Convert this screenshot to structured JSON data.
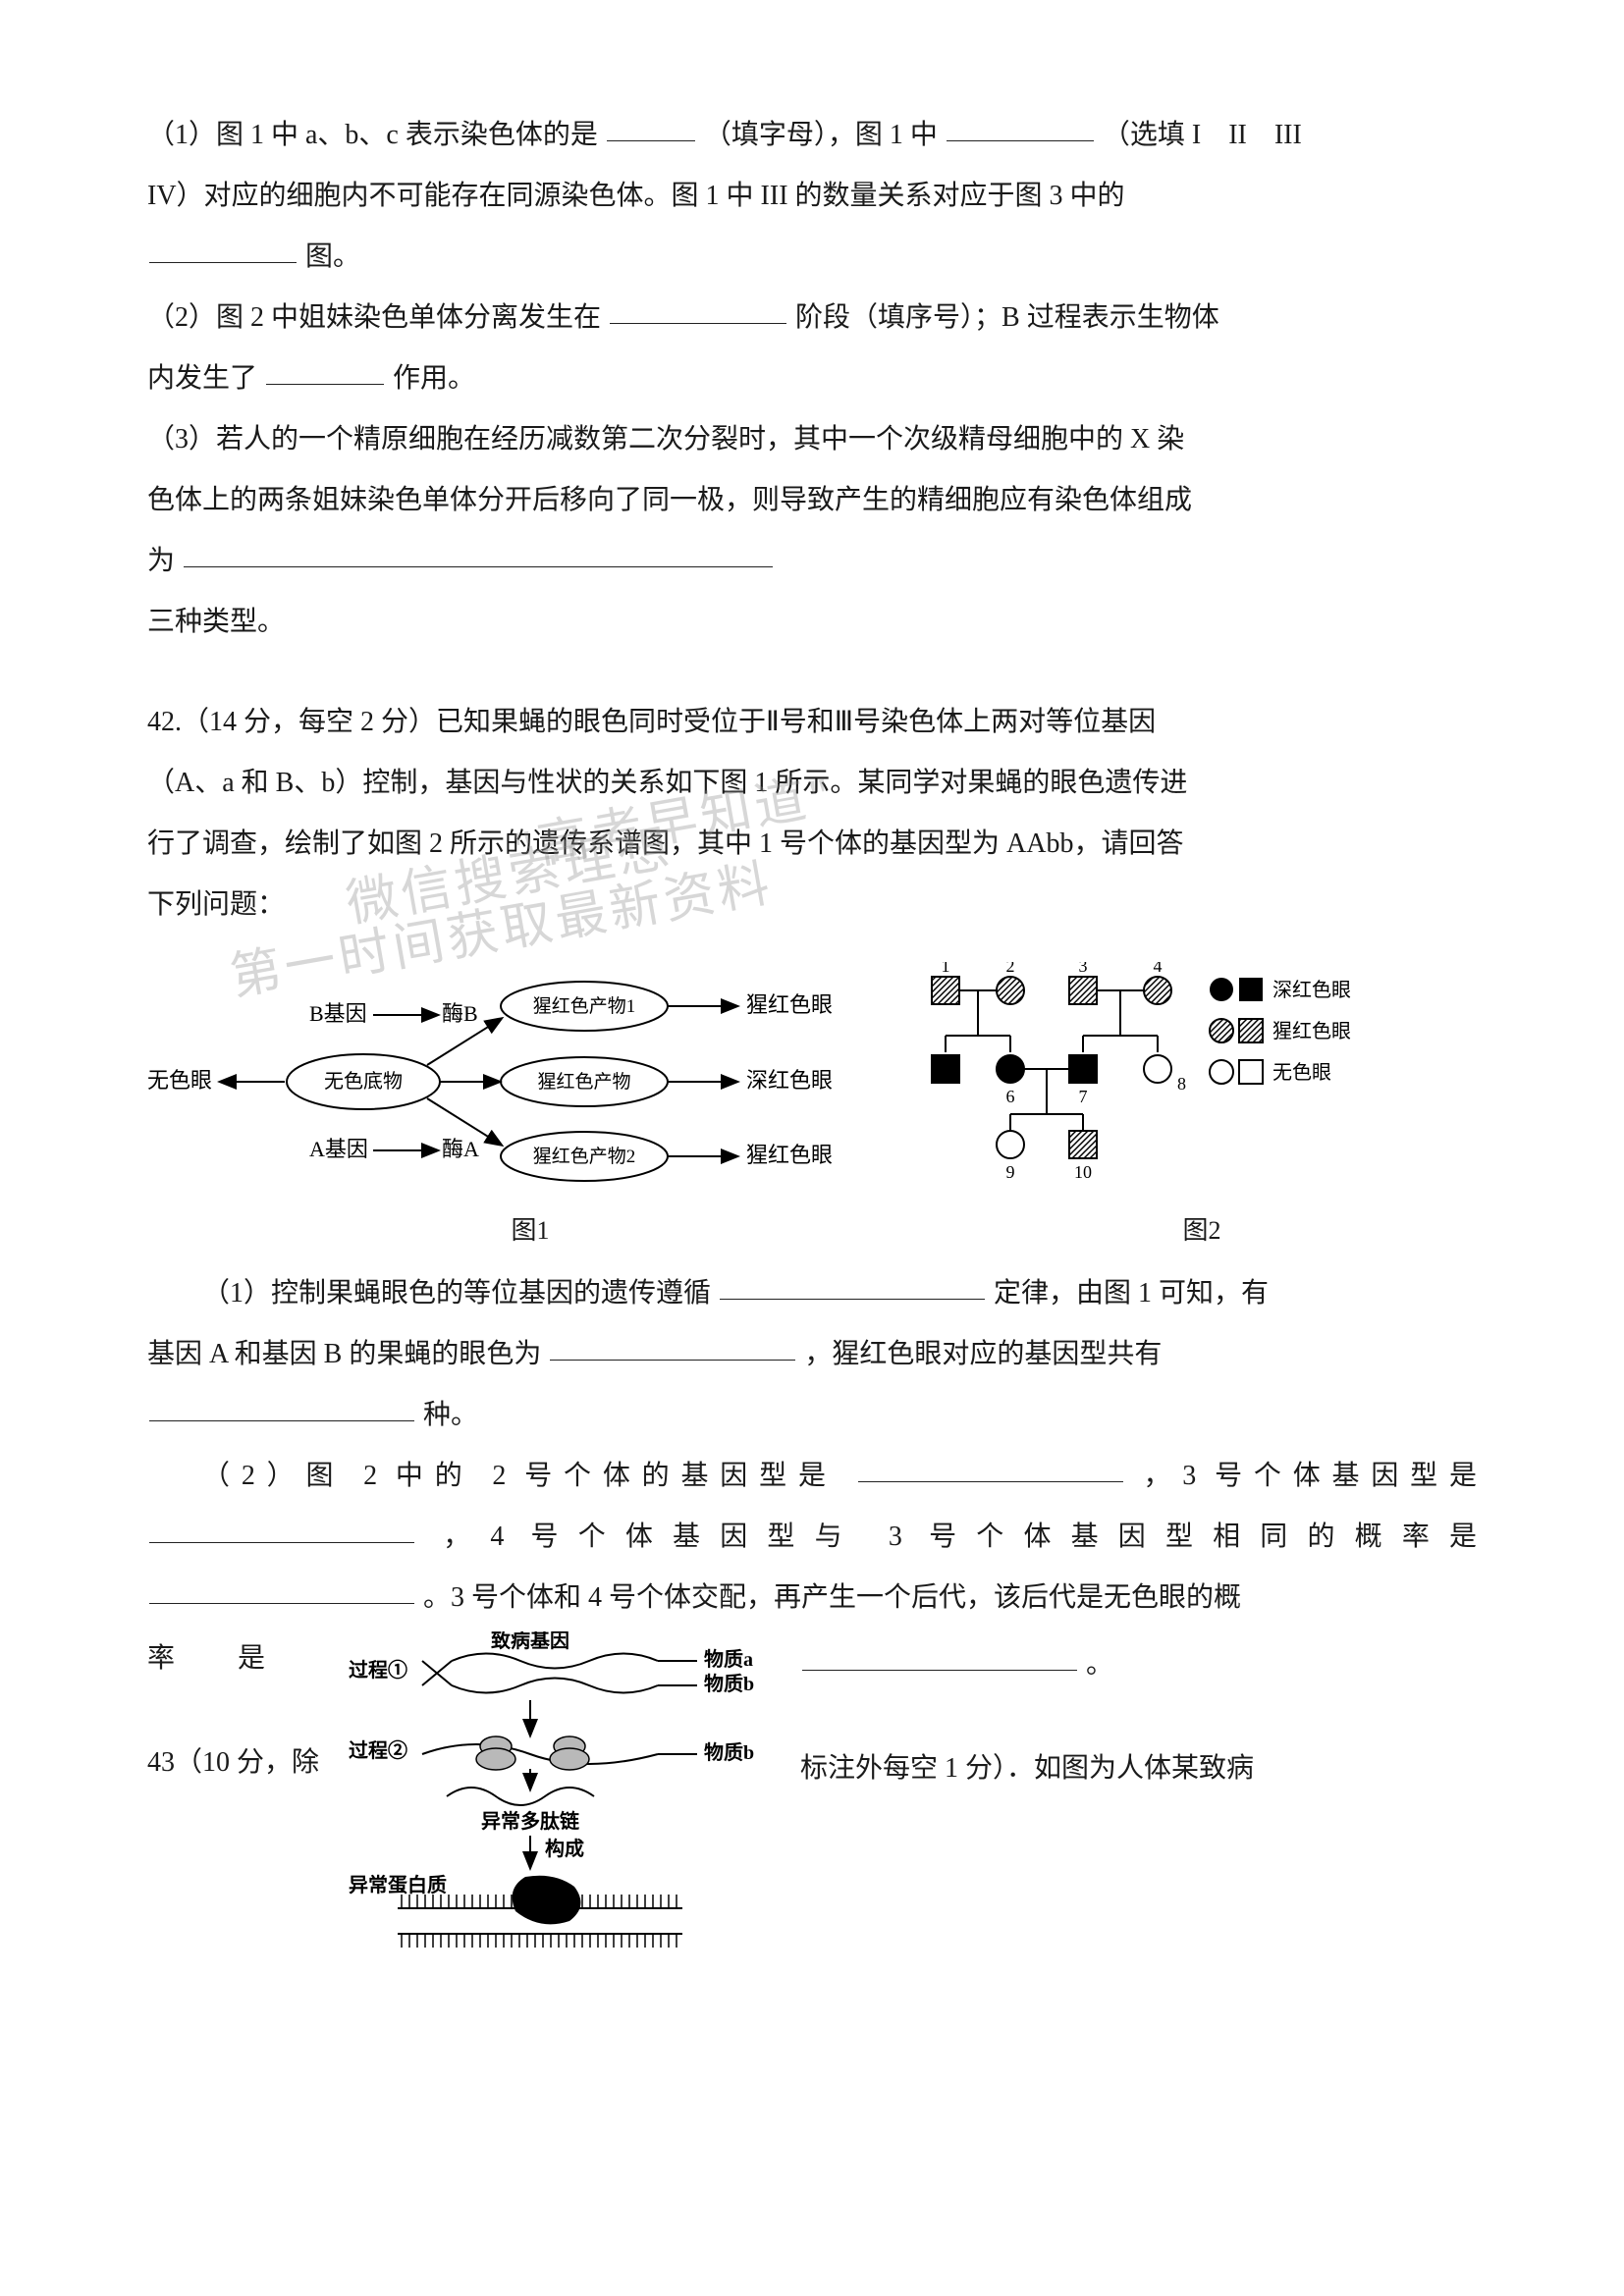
{
  "q41": {
    "p1_a": "（1）图 1 中 a、b、c 表示染色体的是",
    "p1_b": "（填字母），图 1 中",
    "p1_c": "（选填 I　II　III",
    "p1_d": "IV）对应的细胞内不可能存在同源染色体。图 1 中 III 的数量关系对应于图 3 中的",
    "p1_e": "图。",
    "p2_a": "（2）图 2 中姐妹染色单体分离发生在",
    "p2_b": "阶段（填序号）；B 过程表示生物体",
    "p2_c": "内发生了",
    "p2_d": "作用。",
    "p3_a": "（3）若人的一个精原细胞在经历减数第二次分裂时，其中一个次级精母细胞中的 X 染",
    "p3_b": "色体上的两条姐妹染色单体分开后移向了同一极，则导致产生的精细胞应有染色体组成",
    "p3_c": "为",
    "p3_d": "三种类型。"
  },
  "q42": {
    "header": "42.（14 分，每空 2 分）已知果蝇的眼色同时受位于Ⅱ号和Ⅲ号染色体上两对等位基因",
    "line2": "（A、a 和 B、b）控制，基因与性状的关系如下图 1 所示。某同学对果蝇的眼色遗传进",
    "line3": "行了调查，绘制了如图 2 所示的遗传系谱图，其中 1 号个体的基因型为 AAbb，请回答",
    "line4": "下列问题：",
    "fig1": {
      "label": "图1",
      "text": {
        "b_gene": "B基因",
        "enzyme_b": "酶B",
        "no_color_eye": "无色眼",
        "no_color_sub": "无色底物",
        "a_gene": "A基因",
        "enzyme_a": "酶A",
        "prod1": "猩红色产物1",
        "prod": "猩红色产物",
        "prod2": "猩红色产物2",
        "red_eye1": "猩红色眼",
        "dark_red": "深红色眼",
        "red_eye2": "猩红色眼"
      },
      "colors": {
        "stroke": "#000000",
        "fill": "#ffffff"
      }
    },
    "fig2": {
      "label": "图2",
      "legend": {
        "dark_red": "深红色眼",
        "scarlet": "猩红色眼",
        "colorless": "无色眼"
      },
      "nodes": [
        {
          "id": 1,
          "row": 1,
          "col": 0,
          "sex": "m",
          "pheno": "scarlet"
        },
        {
          "id": 2,
          "row": 1,
          "col": 1,
          "sex": "f",
          "pheno": "scarlet"
        },
        {
          "id": 3,
          "row": 1,
          "col": 2,
          "sex": "m",
          "pheno": "scarlet"
        },
        {
          "id": 4,
          "row": 1,
          "col": 3,
          "sex": "f",
          "pheno": "scarlet"
        },
        {
          "id": 5,
          "row": 2,
          "col": 0,
          "sex": "m",
          "pheno": "dark"
        },
        {
          "id": 6,
          "row": 2,
          "col": 1,
          "sex": "f",
          "pheno": "dark"
        },
        {
          "id": 7,
          "row": 2,
          "col": 2,
          "sex": "m",
          "pheno": "dark"
        },
        {
          "id": 8,
          "row": 2,
          "col": 3,
          "sex": "f",
          "pheno": "colorless"
        },
        {
          "id": 9,
          "row": 3,
          "col": 1,
          "sex": "f",
          "pheno": "colorless"
        },
        {
          "id": 10,
          "row": 3,
          "col": 2,
          "sex": "m",
          "pheno": "scarlet"
        }
      ],
      "colors": {
        "stroke": "#000000",
        "fill_dark": "#000000",
        "fill_light": "#ffffff"
      }
    },
    "p1_a": "（1）控制果蝇眼色的等位基因的遗传遵循",
    "p1_b": "定律，由图 1 可知，有",
    "p1_c": "基因 A 和基因 B 的果蝇的眼色为",
    "p1_d": "，猩红色眼对应的基因型共有",
    "p1_e": "种。",
    "p2_a": "（2）图 2 中的 2 号个体的基因型是",
    "p2_b": "，3 号个体基因型是",
    "p2_c": "，4 号个体基因型与 3 号个体基因型相同的概率是",
    "p2_d": "。3 号个体和 4 号个体交配，再产生一个后代，该后代是无色眼的概",
    "p2_e_left": "率",
    "p2_e_left2": "是",
    "p2_e_right": "。"
  },
  "q43": {
    "header_a": "43（10 分，除",
    "header_b": "标注外每空 1 分）．如图为人体某致病",
    "fig3": {
      "labels": {
        "process1": "过程①",
        "process2": "过程②",
        "gene": "致病基因",
        "mat_a": "物质a",
        "mat_b": "物质b",
        "mat_b2": "物质b",
        "peptide": "异常多肽链",
        "compose": "构成",
        "protein": "异常蛋白质"
      }
    }
  }
}
